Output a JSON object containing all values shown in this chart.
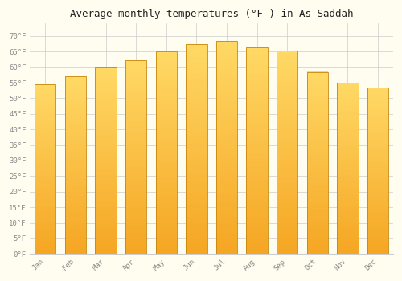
{
  "title": "Average monthly temperatures (°F ) in As Saddah",
  "months": [
    "Jan",
    "Feb",
    "Mar",
    "Apr",
    "May",
    "Jun",
    "Jul",
    "Aug",
    "Sep",
    "Oct",
    "Nov",
    "Dec"
  ],
  "values": [
    54.5,
    57.0,
    59.9,
    62.2,
    65.1,
    67.5,
    68.5,
    66.5,
    65.3,
    58.5,
    55.0,
    53.5
  ],
  "bar_color_bottom": "#F5A623",
  "bar_color_top": "#FFD966",
  "bar_edge_color": "#C8860A",
  "background_color": "#FFFDF0",
  "grid_color": "#CCCCCC",
  "tick_label_color": "#888888",
  "title_color": "#222222",
  "ylim": [
    0,
    74
  ],
  "yticks": [
    0,
    5,
    10,
    15,
    20,
    25,
    30,
    35,
    40,
    45,
    50,
    55,
    60,
    65,
    70
  ],
  "ytick_labels": [
    "0°F",
    "5°F",
    "10°F",
    "15°F",
    "20°F",
    "25°F",
    "30°F",
    "35°F",
    "40°F",
    "45°F",
    "50°F",
    "55°F",
    "60°F",
    "65°F",
    "70°F"
  ],
  "title_fontsize": 9,
  "tick_fontsize": 6.5,
  "bar_width": 0.7
}
